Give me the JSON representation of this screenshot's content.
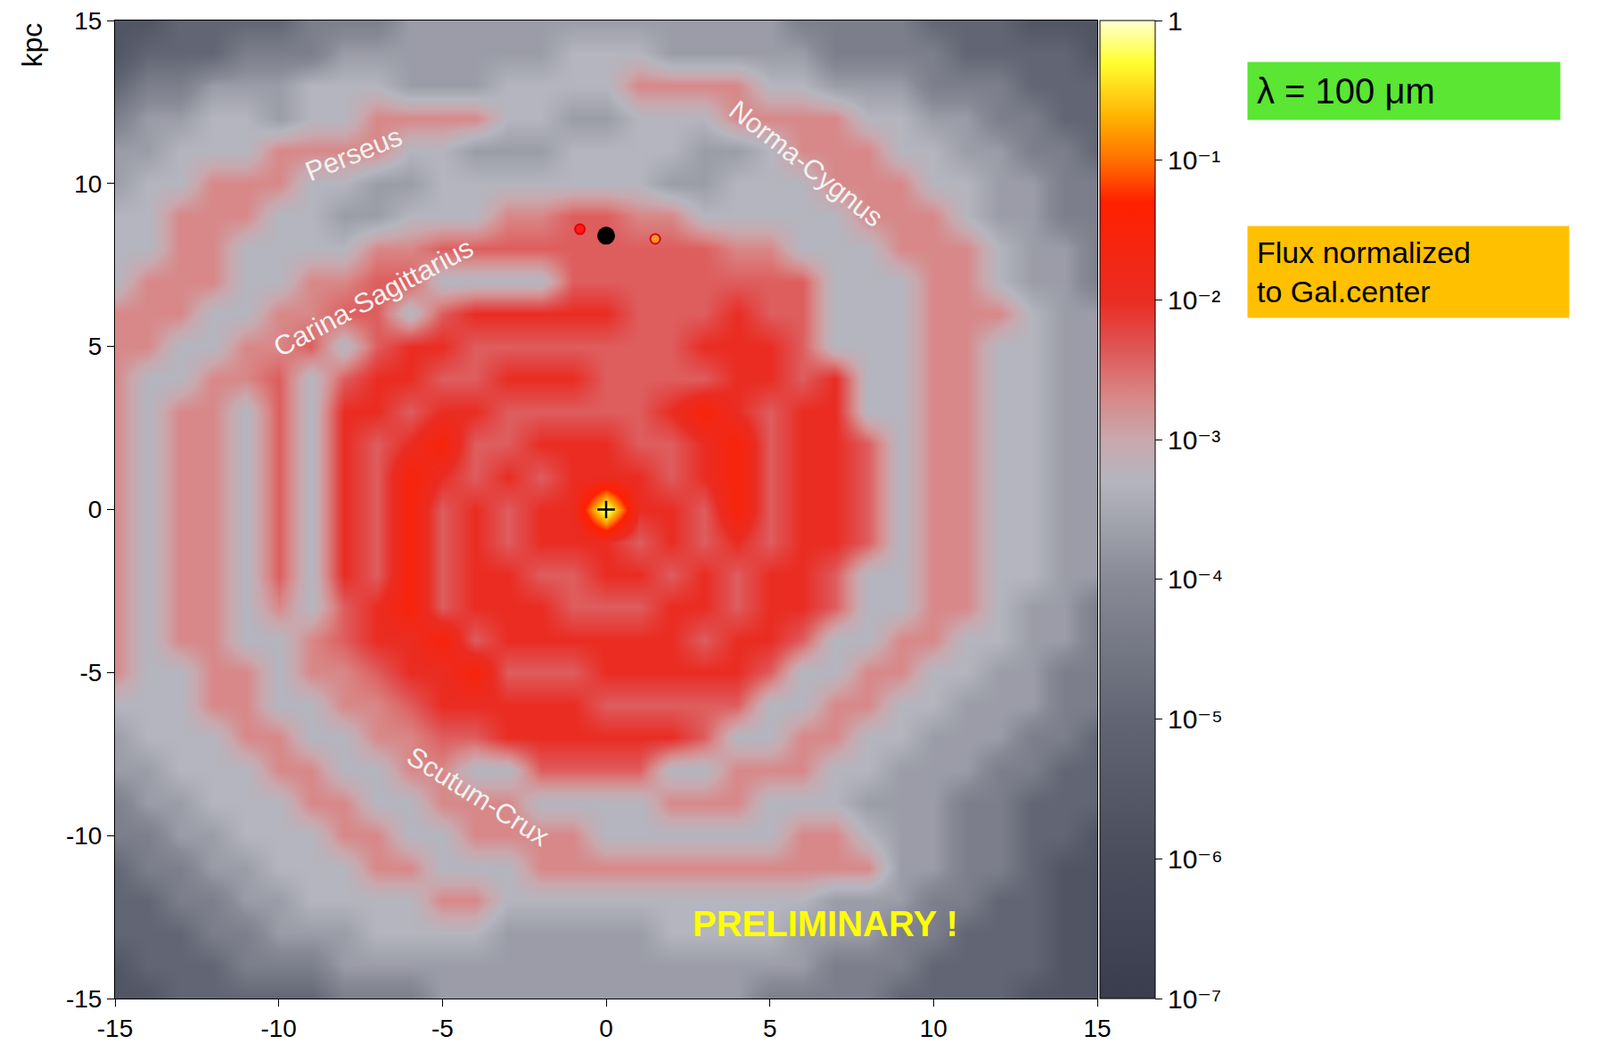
{
  "chart_data": {
    "type": "heatmap",
    "ylabel": "kpc",
    "xlim": [
      -15,
      15
    ],
    "ylim": [
      -15,
      15
    ],
    "xticks": [
      -15,
      -10,
      -5,
      0,
      5,
      10,
      15
    ],
    "yticks": [
      -15,
      -10,
      -5,
      0,
      5,
      10,
      15
    ],
    "grid": false,
    "x": [
      -15,
      -14,
      -13,
      -12,
      -11,
      -10,
      -9,
      -8,
      -7,
      -6,
      -5,
      -4,
      -3,
      -2,
      -1,
      0,
      1,
      2,
      3,
      4,
      5,
      6,
      7,
      8,
      9,
      10,
      11,
      12,
      13,
      14,
      15
    ],
    "y": [
      -15,
      -14,
      -13,
      -12,
      -11,
      -10,
      -9,
      -8,
      -7,
      -6,
      -5,
      -4,
      -3,
      -2,
      -1,
      0,
      1,
      2,
      3,
      4,
      5,
      6,
      7,
      8,
      9,
      10,
      11,
      12,
      13,
      14,
      15
    ],
    "cells": [
      [
        2e-06,
        2e-06,
        1e-05,
        1e-05,
        1e-05,
        1e-05,
        1e-05,
        5e-05,
        5e-05,
        5e-05,
        0.0002,
        0.0002,
        0.0002,
        0.0002,
        0.0002,
        0.0002,
        0.0002,
        0.0002,
        0.0002,
        0.0002,
        5e-05,
        5e-05,
        5e-05,
        5e-05,
        1e-05,
        1e-05,
        1e-05,
        1e-05,
        2e-06,
        2e-06,
        2e-06
      ],
      [
        2e-06,
        1e-05,
        1e-05,
        1e-05,
        5e-05,
        5e-05,
        5e-05,
        0.0002,
        0.0002,
        0.0002,
        0.0002,
        0.0002,
        0.0002,
        0.0002,
        0.0002,
        0.0002,
        0.0002,
        0.0002,
        0.0002,
        0.0002,
        0.0002,
        0.0002,
        5e-05,
        5e-05,
        5e-05,
        1e-05,
        1e-05,
        1e-05,
        1e-05,
        2e-06,
        2e-06
      ],
      [
        1e-05,
        1e-05,
        1e-05,
        5e-05,
        5e-05,
        0.0002,
        0.0002,
        0.0002,
        0.0005,
        0.0005,
        0.0005,
        0.0005,
        0.0002,
        0.0002,
        0.0002,
        0.0002,
        0.0002,
        0.0005,
        0.0005,
        0.0005,
        0.0005,
        0.0002,
        0.0002,
        0.0002,
        5e-05,
        5e-05,
        1e-05,
        1e-05,
        1e-05,
        2e-06,
        2e-06
      ],
      [
        1e-05,
        1e-05,
        5e-05,
        5e-05,
        0.0002,
        0.0002,
        0.0005,
        0.0005,
        0.0005,
        0.0005,
        0.002,
        0.002,
        0.0005,
        0.0005,
        0.0005,
        0.0005,
        0.0005,
        0.0005,
        0.0005,
        0.0005,
        0.0005,
        0.0005,
        0.0002,
        0.0002,
        0.0002,
        5e-05,
        5e-05,
        1e-05,
        1e-05,
        2e-06,
        2e-06
      ],
      [
        1e-05,
        5e-05,
        5e-05,
        0.0002,
        0.0002,
        0.0005,
        0.0005,
        0.0005,
        0.002,
        0.002,
        0.0005,
        0.0005,
        0.0005,
        0.002,
        0.002,
        0.002,
        0.002,
        0.002,
        0.002,
        0.002,
        0.002,
        0.002,
        0.002,
        0.002,
        0.0002,
        0.0002,
        5e-05,
        5e-05,
        1e-05,
        2e-06,
        2e-06
      ],
      [
        5e-05,
        5e-05,
        0.0002,
        0.0002,
        0.0005,
        0.0005,
        0.0005,
        0.002,
        0.002,
        0.0005,
        0.0005,
        0.002,
        0.002,
        0.002,
        0.002,
        0.0005,
        0.0005,
        0.0005,
        0.0005,
        0.0005,
        0.0005,
        0.002,
        0.002,
        0.0005,
        0.0002,
        0.0002,
        5e-05,
        5e-05,
        1e-05,
        1e-05,
        2e-06
      ],
      [
        5e-05,
        0.0002,
        0.0002,
        0.0005,
        0.0005,
        0.0005,
        0.002,
        0.002,
        0.0005,
        0.0005,
        0.002,
        0.002,
        0.002,
        0.0005,
        0.0005,
        0.0005,
        0.0005,
        0.002,
        0.002,
        0.002,
        0.0005,
        0.0005,
        0.0005,
        0.0002,
        0.0002,
        0.0002,
        5e-05,
        5e-05,
        1e-05,
        1e-05,
        1e-05
      ],
      [
        0.0002,
        0.0002,
        0.0005,
        0.0005,
        0.0005,
        0.002,
        0.002,
        0.0005,
        0.0005,
        0.002,
        0.002,
        0.0005,
        0.0005,
        0.004,
        0.004,
        0.004,
        0.004,
        0.0005,
        0.0005,
        0.002,
        0.002,
        0.002,
        0.0005,
        0.0005,
        0.0002,
        0.0002,
        0.0002,
        5e-05,
        5e-05,
        1e-05,
        1e-05
      ],
      [
        0.0002,
        0.0005,
        0.0005,
        0.0005,
        0.002,
        0.002,
        0.0005,
        0.0005,
        0.002,
        0.002,
        0.004,
        0.004,
        0.01,
        0.01,
        0.01,
        0.01,
        0.01,
        0.01,
        0.004,
        0.0005,
        0.0005,
        0.002,
        0.002,
        0.0005,
        0.0005,
        0.0002,
        0.0002,
        0.0002,
        5e-05,
        5e-05,
        1e-05
      ],
      [
        0.0005,
        0.0005,
        0.0005,
        0.002,
        0.002,
        0.0005,
        0.0005,
        0.002,
        0.002,
        0.004,
        0.01,
        0.01,
        0.01,
        0.01,
        0.01,
        0.004,
        0.004,
        0.004,
        0.004,
        0.004,
        0.0005,
        0.0005,
        0.002,
        0.002,
        0.0005,
        0.0005,
        0.0002,
        0.0002,
        0.0002,
        5e-05,
        5e-05
      ],
      [
        0.002,
        0.0005,
        0.0005,
        0.002,
        0.002,
        0.0005,
        0.002,
        0.002,
        0.004,
        0.01,
        0.01,
        0.03,
        0.004,
        0.004,
        0.004,
        0.01,
        0.01,
        0.01,
        0.01,
        0.01,
        0.004,
        0.0005,
        0.0005,
        0.002,
        0.002,
        0.0005,
        0.0005,
        0.0002,
        0.0002,
        5e-05,
        5e-05
      ],
      [
        0.002,
        0.0005,
        0.002,
        0.002,
        0.0005,
        0.0005,
        0.002,
        0.004,
        0.01,
        0.01,
        0.03,
        0.004,
        0.01,
        0.01,
        0.01,
        0.01,
        0.01,
        0.01,
        0.004,
        0.01,
        0.01,
        0.004,
        0.0005,
        0.0005,
        0.002,
        0.002,
        0.0005,
        0.0005,
        0.0002,
        0.0002,
        5e-05
      ],
      [
        0.002,
        0.0005,
        0.002,
        0.002,
        0.0005,
        0.002,
        0.0005,
        0.004,
        0.01,
        0.03,
        0.004,
        0.01,
        0.01,
        0.01,
        0.004,
        0.004,
        0.004,
        0.01,
        0.01,
        0.004,
        0.01,
        0.01,
        0.004,
        0.0005,
        0.0005,
        0.002,
        0.002,
        0.0005,
        0.0002,
        0.0002,
        5e-05
      ],
      [
        0.002,
        0.0005,
        0.002,
        0.002,
        0.0005,
        0.004,
        0.0005,
        0.01,
        0.004,
        0.03,
        0.004,
        0.01,
        0.01,
        0.004,
        0.004,
        0.01,
        0.01,
        0.004,
        0.01,
        0.004,
        0.01,
        0.01,
        0.004,
        0.0005,
        0.0005,
        0.002,
        0.002,
        0.0005,
        0.0005,
        0.0002,
        0.0002
      ],
      [
        0.002,
        0.0005,
        0.002,
        0.002,
        0.0005,
        0.004,
        0.0005,
        0.01,
        0.004,
        0.03,
        0.004,
        0.01,
        0.004,
        0.01,
        0.01,
        0.01,
        0.004,
        0.01,
        0.004,
        0.01,
        0.004,
        0.01,
        0.01,
        0.004,
        0.0005,
        0.002,
        0.002,
        0.0005,
        0.0005,
        0.0002,
        0.0002
      ],
      [
        0.002,
        0.0005,
        0.002,
        0.002,
        0.0005,
        0.004,
        0.0005,
        0.01,
        0.004,
        0.03,
        0.004,
        0.01,
        0.004,
        0.01,
        0.01,
        1,
        0.01,
        0.01,
        0.004,
        0.03,
        0.004,
        0.01,
        0.01,
        0.004,
        0.0005,
        0.002,
        0.002,
        0.0005,
        0.0005,
        0.0002,
        0.0002
      ],
      [
        0.002,
        0.0005,
        0.002,
        0.002,
        0.0005,
        0.004,
        0.0005,
        0.01,
        0.004,
        0.03,
        0.01,
        0.004,
        0.01,
        0.004,
        0.01,
        0.01,
        0.01,
        0.004,
        0.01,
        0.03,
        0.004,
        0.01,
        0.01,
        0.004,
        0.0005,
        0.002,
        0.002,
        0.0005,
        0.0005,
        0.0002,
        0.0002
      ],
      [
        0.002,
        0.0005,
        0.002,
        0.002,
        0.0005,
        0.004,
        0.0005,
        0.01,
        0.004,
        0.01,
        0.03,
        0.004,
        0.004,
        0.01,
        0.01,
        0.01,
        0.004,
        0.004,
        0.01,
        0.03,
        0.004,
        0.01,
        0.01,
        0.004,
        0.0005,
        0.002,
        0.002,
        0.0005,
        0.0005,
        0.0002,
        0.0002
      ],
      [
        0.002,
        0.0005,
        0.002,
        0.002,
        0.0005,
        0.004,
        0.0005,
        0.01,
        0.01,
        0.004,
        0.01,
        0.01,
        0.004,
        0.004,
        0.004,
        0.004,
        0.004,
        0.01,
        0.03,
        0.01,
        0.004,
        0.01,
        0.01,
        0.0005,
        0.0005,
        0.002,
        0.002,
        0.0005,
        0.0005,
        0.0002,
        0.0002
      ],
      [
        0.002,
        0.0005,
        0.0005,
        0.002,
        0.002,
        0.004,
        0.0005,
        0.004,
        0.01,
        0.01,
        0.004,
        0.004,
        0.01,
        0.01,
        0.01,
        0.004,
        0.004,
        0.004,
        0.004,
        0.01,
        0.01,
        0.004,
        0.01,
        0.0005,
        0.0005,
        0.002,
        0.002,
        0.0005,
        0.0005,
        0.0002,
        0.0002
      ],
      [
        0.002,
        0.002,
        0.0005,
        0.0005,
        0.002,
        0.002,
        0.004,
        0.0005,
        0.004,
        0.01,
        0.01,
        0.004,
        0.004,
        0.004,
        0.004,
        0.004,
        0.004,
        0.004,
        0.01,
        0.01,
        0.01,
        0.004,
        0.0005,
        0.0005,
        0.0005,
        0.002,
        0.002,
        0.0005,
        0.0005,
        0.0002,
        0.0002
      ],
      [
        0.002,
        0.002,
        0.002,
        0.0005,
        0.0005,
        0.002,
        0.002,
        0.004,
        0.004,
        0.0005,
        0.004,
        0.01,
        0.01,
        0.01,
        0.01,
        0.01,
        0.004,
        0.004,
        0.004,
        0.01,
        0.004,
        0.004,
        0.0005,
        0.0005,
        0.0005,
        0.002,
        0.002,
        0.002,
        0.0005,
        0.0002,
        0.0002
      ],
      [
        0.0005,
        0.002,
        0.002,
        0.002,
        0.0005,
        0.0005,
        0.002,
        0.002,
        0.004,
        0.004,
        0.0005,
        0.0005,
        0.0005,
        0.0005,
        0.004,
        0.004,
        0.004,
        0.004,
        0.004,
        0.004,
        0.004,
        0.004,
        0.0005,
        0.0005,
        0.0005,
        0.002,
        0.002,
        0.0005,
        0.0002,
        0.0002,
        5e-05
      ],
      [
        0.0005,
        0.0005,
        0.002,
        0.002,
        0.0005,
        0.0005,
        0.0005,
        0.0005,
        0.002,
        0.002,
        0.004,
        0.004,
        0.004,
        0.004,
        0.004,
        0.004,
        0.004,
        0.004,
        0.004,
        0.002,
        0.002,
        0.0005,
        0.0005,
        0.0005,
        0.002,
        0.002,
        0.002,
        0.0005,
        0.0002,
        0.0002,
        5e-05
      ],
      [
        0.0005,
        0.0005,
        0.002,
        0.002,
        0.002,
        0.0005,
        0.0005,
        0.0002,
        0.0002,
        0.0005,
        0.0005,
        0.0005,
        0.002,
        0.002,
        0.004,
        0.004,
        0.002,
        0.002,
        0.0005,
        0.0005,
        0.0005,
        0.0005,
        0.0005,
        0.002,
        0.002,
        0.002,
        0.0005,
        0.0002,
        0.0002,
        5e-05,
        5e-05
      ],
      [
        0.0002,
        0.0005,
        0.0005,
        0.002,
        0.002,
        0.002,
        0.0005,
        0.0005,
        0.0002,
        0.0002,
        0.0005,
        0.0005,
        0.0005,
        0.0005,
        0.0005,
        0.0005,
        0.0005,
        0.0002,
        0.0002,
        0.0005,
        0.0005,
        0.0005,
        0.002,
        0.002,
        0.002,
        0.0005,
        0.0005,
        0.0002,
        0.0002,
        5e-05,
        5e-05
      ],
      [
        0.0002,
        0.0002,
        0.0005,
        0.0005,
        0.0005,
        0.002,
        0.002,
        0.002,
        0.002,
        0.0005,
        0.0005,
        0.0002,
        0.0002,
        0.0002,
        0.0005,
        0.0005,
        0.0005,
        0.0005,
        0.0002,
        0.0002,
        0.0005,
        0.002,
        0.002,
        0.002,
        0.0005,
        0.0005,
        0.0002,
        0.0002,
        5e-05,
        5e-05,
        1e-05
      ],
      [
        5e-05,
        0.0002,
        0.0002,
        0.0005,
        0.0005,
        0.0002,
        0.0005,
        0.0005,
        0.002,
        0.002,
        0.002,
        0.002,
        0.0005,
        0.0005,
        0.0002,
        0.0002,
        0.0005,
        0.0005,
        0.0005,
        0.002,
        0.002,
        0.002,
        0.002,
        0.0005,
        0.0005,
        0.0002,
        0.0002,
        5e-05,
        5e-05,
        1e-05,
        1e-05
      ],
      [
        1e-05,
        5e-05,
        5e-05,
        0.0002,
        0.0002,
        0.0002,
        0.0005,
        0.0005,
        0.0005,
        0.0002,
        0.0002,
        0.0002,
        0.0005,
        0.0005,
        0.0005,
        0.0005,
        0.002,
        0.002,
        0.002,
        0.002,
        0.0005,
        0.0005,
        0.0002,
        0.0002,
        0.0002,
        5e-05,
        5e-05,
        5e-05,
        1e-05,
        1e-05,
        1e-05
      ],
      [
        2e-06,
        1e-05,
        1e-05,
        1e-05,
        5e-05,
        5e-05,
        5e-05,
        0.0002,
        0.0002,
        0.0002,
        0.0002,
        0.0002,
        0.0002,
        0.0002,
        0.0005,
        0.0005,
        0.0005,
        0.0002,
        0.0002,
        0.0002,
        0.0002,
        0.0002,
        5e-05,
        5e-05,
        5e-05,
        5e-05,
        1e-05,
        1e-05,
        1e-05,
        1e-05,
        2e-06
      ],
      [
        2e-06,
        2e-06,
        1e-05,
        1e-05,
        1e-05,
        1e-05,
        5e-05,
        5e-05,
        5e-05,
        0.0002,
        0.0002,
        0.0002,
        0.0002,
        0.0002,
        0.0002,
        0.0002,
        0.0002,
        0.0002,
        0.0002,
        0.0002,
        0.0002,
        5e-05,
        5e-05,
        5e-05,
        5e-05,
        1e-05,
        1e-05,
        1e-05,
        2e-06,
        2e-06,
        2e-06
      ]
    ],
    "colorbar": {
      "range": [
        1e-07,
        1
      ],
      "ticks": [
        1,
        {
          "value": 0.1,
          "label": "10⁻¹"
        },
        {
          "value": 0.01,
          "label": "10⁻²"
        },
        {
          "value": 0.001,
          "label": "10⁻³"
        },
        {
          "value": 0.0001,
          "label": "10⁻⁴"
        },
        {
          "value": 1e-05,
          "label": "10⁻⁵"
        },
        {
          "value": 1e-06,
          "label": "10⁻⁶"
        },
        {
          "value": 1e-07,
          "label": "10⁻⁷"
        }
      ]
    },
    "points": [
      {
        "x": 0,
        "y": 8.4,
        "color": "#000000",
        "marker": "circle"
      },
      {
        "x": -0.8,
        "y": 8.6,
        "color": "#ff1a1a",
        "marker": "circle"
      },
      {
        "x": 1.5,
        "y": 8.3,
        "color": "#ff9a30",
        "marker": "circle"
      },
      {
        "x": 0,
        "y": 0,
        "color": "#000000",
        "marker": "cross"
      }
    ],
    "annotations": [
      {
        "text": "Perseus",
        "x": -7.7,
        "y": 10.9,
        "color": "#f2f2f2"
      },
      {
        "text": "Norma-Cygnus",
        "x": 6.1,
        "y": 10.6,
        "color": "#f2f2f2"
      },
      {
        "text": "Carina-Sagittarius",
        "x": -7.1,
        "y": 6.5,
        "color": "#f2f2f2"
      },
      {
        "text": "Scutum-Crux",
        "x": -3.9,
        "y": -8.8,
        "color": "#f2f2f2"
      },
      {
        "text": "PRELIMINARY !",
        "x": 6.7,
        "y": -12.7,
        "color": "#ffff00"
      }
    ],
    "boxes": [
      {
        "lines": [
          "λ = 100 μm"
        ],
        "color": "#5ae632"
      },
      {
        "lines": [
          "Flux normalized",
          "to Gal.center"
        ],
        "color": "#ffc000"
      }
    ]
  }
}
